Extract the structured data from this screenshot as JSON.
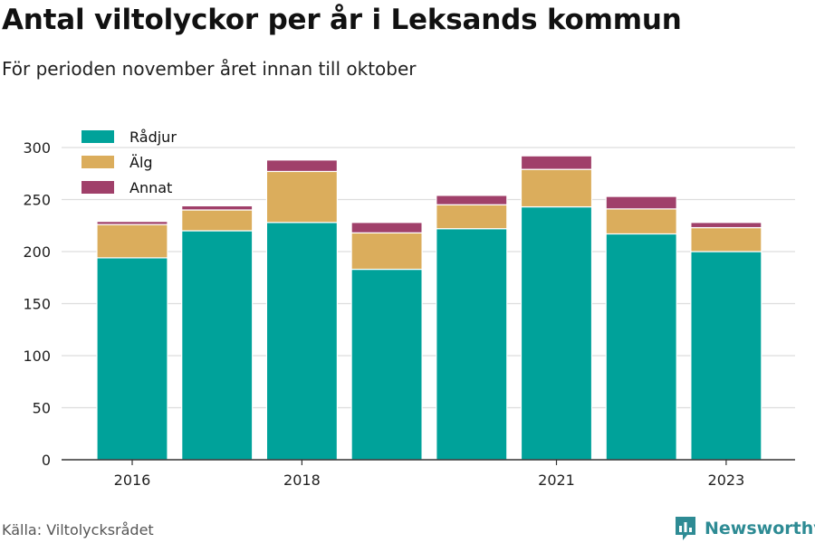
{
  "title": "Antal viltolyckor per år i Leksands kommun",
  "subtitle": "För perioden november året innan till oktober",
  "source": "Källa: Viltolycksrådet",
  "brand": {
    "name": "Newsworthy",
    "icon": "newsworthy-logo-icon",
    "color": "#2e8b94"
  },
  "chart_data": {
    "type": "bar",
    "stacked": true,
    "categories": [
      "2016",
      "2017",
      "2018",
      "2019",
      "2020",
      "2021",
      "2022",
      "2023"
    ],
    "x_tick_labels": [
      "2016",
      "",
      "2018",
      "",
      "",
      "2021",
      "",
      "2023"
    ],
    "series": [
      {
        "name": "Rådjur",
        "color": "#00a29a",
        "values": [
          194,
          220,
          228,
          183,
          222,
          243,
          217,
          200
        ]
      },
      {
        "name": "Älg",
        "color": "#dbad5c",
        "values": [
          32,
          20,
          49,
          35,
          23,
          36,
          24,
          23
        ]
      },
      {
        "name": "Annat",
        "color": "#a0406a",
        "values": [
          3,
          4,
          11,
          10,
          9,
          13,
          12,
          5
        ]
      }
    ],
    "ylim": [
      0,
      300
    ],
    "yticks": [
      0,
      50,
      100,
      150,
      200,
      250,
      300
    ],
    "grid": true,
    "legend_position": "top-left"
  }
}
